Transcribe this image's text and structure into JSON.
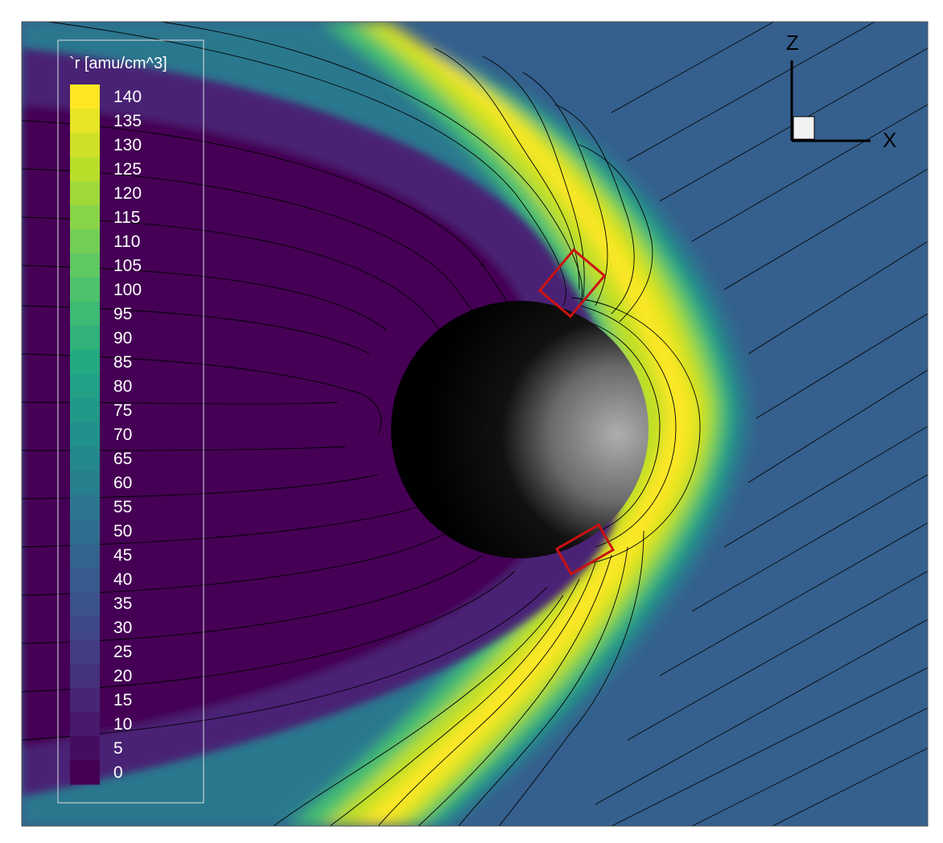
{
  "chart_data": {
    "type": "heatmap",
    "title": "",
    "variable_label": "`r [amu/cm^3]",
    "colorbar": {
      "ticks": [
        140,
        135,
        130,
        125,
        120,
        115,
        110,
        105,
        100,
        95,
        90,
        85,
        80,
        75,
        70,
        65,
        60,
        55,
        50,
        45,
        40,
        35,
        30,
        25,
        20,
        15,
        10,
        5,
        0
      ],
      "range": [
        0,
        140
      ],
      "colormap": "viridis",
      "colors": [
        "#440154",
        "#482475",
        "#414487",
        "#355f8d",
        "#2a788e",
        "#21918c",
        "#22a884",
        "#44bf70",
        "#7ad151",
        "#bddf26",
        "#fde725"
      ]
    },
    "regions": {
      "solar_wind_density": 40,
      "magnetosheath_peak_density": 140,
      "magnetosphere_density": 5
    },
    "axes_triad": {
      "vertical": "Z",
      "horizontal": "X"
    },
    "markers": {
      "count": 2,
      "color": "#cc1111",
      "shape": "rectangle"
    },
    "planet": {
      "shading": "dayside lit from +X"
    },
    "legend_position": "left"
  }
}
